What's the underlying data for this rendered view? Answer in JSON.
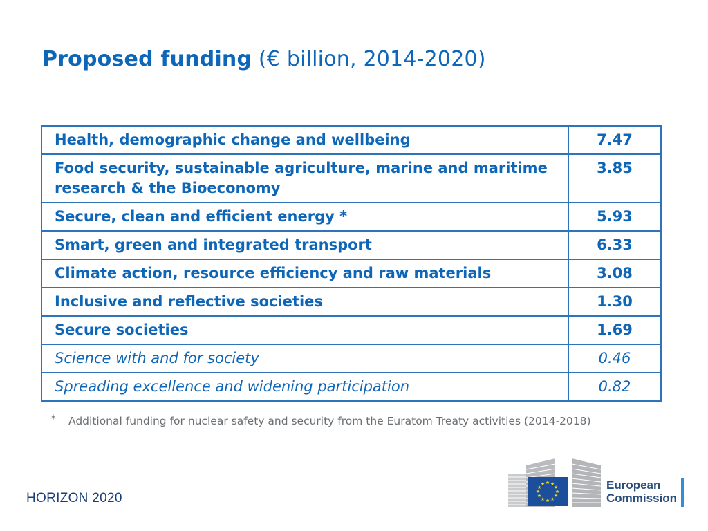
{
  "title": {
    "bold": "Proposed funding",
    "normal": "(€ billion, 2014-2020)"
  },
  "table": {
    "rows": [
      {
        "name": "Health, demographic change and wellbeing",
        "value": "7.47",
        "style": "bold"
      },
      {
        "name": "Food security, sustainable agriculture, marine and maritime research & the Bioeconomy",
        "value": "3.85",
        "style": "bold"
      },
      {
        "name": "Secure, clean and efficient energy *",
        "value": "5.93",
        "style": "bold"
      },
      {
        "name": "Smart, green and integrated transport",
        "value": "6.33",
        "style": "bold"
      },
      {
        "name": "Climate action, resource efficiency and raw materials",
        "value": "3.08",
        "style": "bold"
      },
      {
        "name": "Inclusive and reflective societies",
        "value": "1.30",
        "style": "bold"
      },
      {
        "name": "Secure societies",
        "value": "1.69",
        "style": "bold"
      },
      {
        "name": "Science with and for society",
        "value": "0.46",
        "style": "italic"
      },
      {
        "name": "Spreading excellence and widening participation",
        "value": "0.82",
        "style": "italic"
      }
    ]
  },
  "footnote": {
    "marker": "*",
    "text": "Additional funding for nuclear safety and security from the Euratom Treaty activities (2014-2018)"
  },
  "program": "HORIZON 2020",
  "logo": {
    "line1": "European",
    "line2": "Commission"
  },
  "colors": {
    "title": "#0e66b8",
    "table_border": "#2f73b9",
    "footnote": "#6b6f73",
    "eu_flag_blue": "#1b4f9c",
    "eu_star_yellow": "#ffd617"
  }
}
